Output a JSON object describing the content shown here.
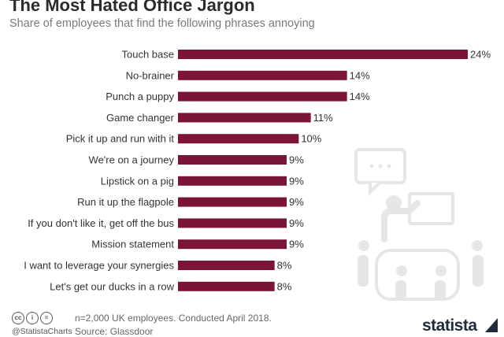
{
  "header": {
    "title": "The Most Hated Office Jargon",
    "subtitle": "Share of employees that find the following phrases annoying"
  },
  "chart_data": {
    "type": "bar",
    "orientation": "horizontal",
    "categories": [
      "Touch base",
      "No-brainer",
      "Punch a puppy",
      "Game changer",
      "Pick it up and run with it",
      "We're on a journey",
      "Lipstick on a pig",
      "Run it up the flagpole",
      "If you don't like it, get off the bus",
      "Mission statement",
      "I want to leverage your synergies",
      "Let's get our ducks in a row"
    ],
    "values": [
      24,
      14,
      14,
      11,
      10,
      9,
      9,
      9,
      9,
      9,
      8,
      8
    ],
    "value_labels": [
      "24%",
      "14%",
      "14%",
      "11%",
      "10%",
      "9%",
      "9%",
      "9%",
      "9%",
      "9%",
      "8%",
      "8%"
    ],
    "bar_color": "#7b1538",
    "xlim": [
      0,
      24
    ],
    "grid": false
  },
  "footer": {
    "license_icons": [
      "cc",
      "i",
      "="
    ],
    "handle": "@StatistaCharts",
    "note": "n=2,000 UK employees. Conducted April 2018.",
    "source": "Source: Glassdoor",
    "brand": "statista"
  },
  "decoration": {
    "icon": "office-meeting-icon",
    "color": "#e6e6e6"
  }
}
